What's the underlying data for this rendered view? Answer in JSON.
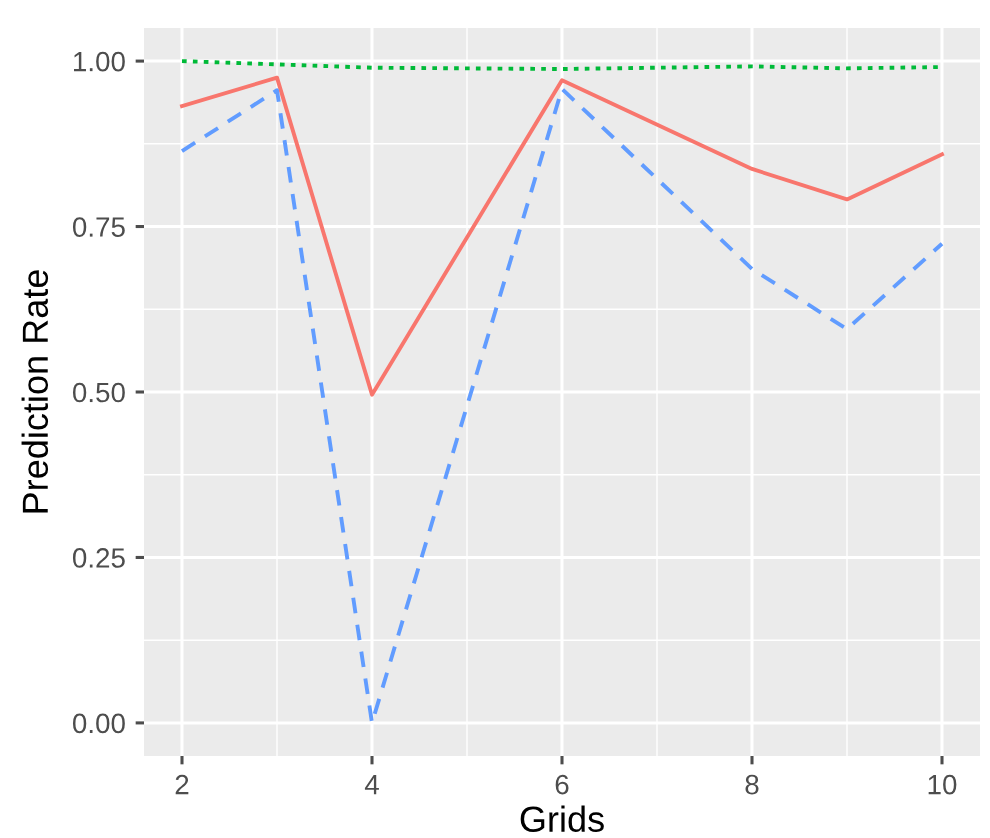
{
  "chart_data": {
    "type": "line",
    "xlabel": "Grids",
    "ylabel": "Prediction Rate",
    "x": [
      2,
      3,
      4,
      6,
      8,
      9,
      10
    ],
    "series": [
      {
        "color": "#f8766d",
        "line_style": "solid",
        "values": [
          0.932,
          0.975,
          0.496,
          0.971,
          0.837,
          0.791,
          0.859
        ]
      },
      {
        "color": "#619cff",
        "line_style": "dashed",
        "values": [
          0.864,
          0.956,
          0.0,
          0.958,
          0.686,
          0.595,
          0.724
        ]
      },
      {
        "color": "#00ba38",
        "line_style": "dotted",
        "values": [
          1.0,
          0.995,
          0.99,
          0.988,
          0.992,
          0.989,
          0.991
        ]
      }
    ],
    "xlim": [
      1.6,
      10.4
    ],
    "ylim": [
      -0.05,
      1.05
    ],
    "xticks": [
      2,
      4,
      6,
      8,
      10
    ],
    "yticks": [
      {
        "value": 0,
        "label": "0.00"
      },
      {
        "value": 0.25,
        "label": "0.25"
      },
      {
        "value": 0.5,
        "label": "0.50"
      },
      {
        "value": 0.75,
        "label": "0.75"
      },
      {
        "value": 1,
        "label": "1.00"
      }
    ],
    "grid": true
  }
}
